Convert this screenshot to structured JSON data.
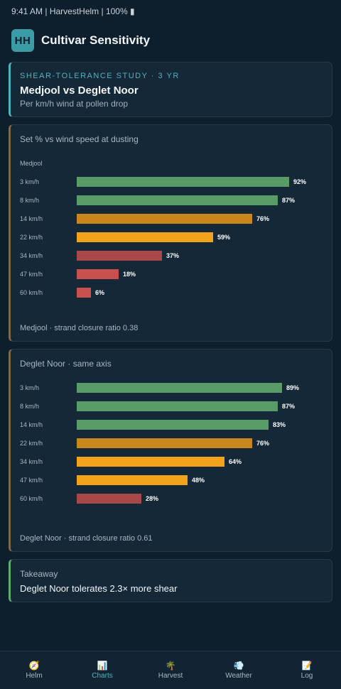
{
  "status_bar": {
    "text": "9:41 AM | HarvestHelm | 100% ▮"
  },
  "header": {
    "logo": "HH",
    "title": "Cultivar Sensitivity"
  },
  "study": {
    "eyebrow": "SHEAR-TOLERANCE STUDY · 3 YR",
    "title": "Medjool vs Deglet Noor",
    "subtitle": "Per km/h wind at pollen drop"
  },
  "colors": {
    "high": "#5a9c68",
    "mid": "#c9861a",
    "warn": "#f2a31b",
    "low": "#a94849",
    "lowest": "#c8514f",
    "accent": "#4fb3bd"
  },
  "chart_data": [
    {
      "type": "bar",
      "orientation": "horizontal",
      "title": "Set % vs wind speed at dusting",
      "series_label": "Medjool",
      "categories": [
        "3 km/h",
        "8 km/h",
        "14 km/h",
        "22 km/h",
        "34 km/h",
        "47 km/h",
        "60 km/h"
      ],
      "values": [
        92,
        87,
        76,
        59,
        37,
        18,
        6
      ],
      "value_labels": [
        "92%",
        "87%",
        "76%",
        "59%",
        "37%",
        "18%",
        "6%"
      ],
      "bar_colors": [
        "#5a9c68",
        "#5a9c68",
        "#c9861a",
        "#f2a31b",
        "#a94849",
        "#c8514f",
        "#c8514f"
      ],
      "xlim": [
        0,
        100
      ],
      "grid": false,
      "footer": "Medjool · strand closure ratio 0.38"
    },
    {
      "type": "bar",
      "orientation": "horizontal",
      "title": "Deglet Noor · same axis",
      "categories": [
        "3 km/h",
        "8 km/h",
        "14 km/h",
        "22 km/h",
        "34 km/h",
        "47 km/h",
        "60 km/h"
      ],
      "values": [
        89,
        87,
        83,
        76,
        64,
        48,
        28
      ],
      "value_labels": [
        "89%",
        "87%",
        "83%",
        "76%",
        "64%",
        "48%",
        "28%"
      ],
      "bar_colors": [
        "#5a9c68",
        "#5a9c68",
        "#5a9c68",
        "#c9861a",
        "#f2a31b",
        "#f2a31b",
        "#a94849"
      ],
      "xlim": [
        0,
        100
      ],
      "grid": false,
      "footer": "Deglet Noor · strand closure ratio 0.61"
    }
  ],
  "takeaway": {
    "label": "Takeaway",
    "text": "Deglet Noor tolerates 2.3× more shear"
  },
  "nav": [
    {
      "icon": "🧭",
      "icon_name": "compass-icon",
      "label": "Helm"
    },
    {
      "icon": "📊",
      "icon_name": "chart-icon",
      "label": "Charts",
      "active": true
    },
    {
      "icon": "🌴",
      "icon_name": "palm-icon",
      "label": "Harvest"
    },
    {
      "icon": "💨",
      "icon_name": "wind-icon",
      "label": "Weather"
    },
    {
      "icon": "📝",
      "icon_name": "memo-icon",
      "label": "Log"
    }
  ]
}
